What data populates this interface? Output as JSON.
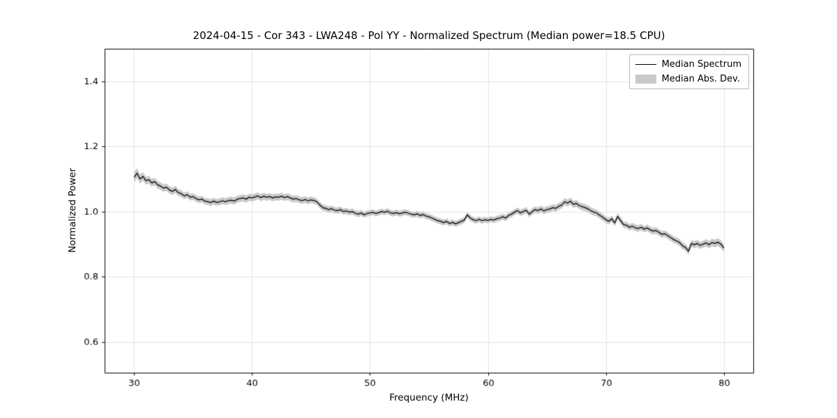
{
  "title": "2024-04-15 - Cor 343 - LWA248 - Pol YY - Normalized Spectrum (Median power=18.5 CPU)",
  "axes": {
    "xlabel": "Frequency (MHz)",
    "ylabel": "Normalized Power"
  },
  "legend": {
    "entries": [
      {
        "label": "Median Spectrum",
        "type": "line"
      },
      {
        "label": "Median Abs. Dev.",
        "type": "patch"
      }
    ],
    "position": "upper right"
  },
  "colors": {
    "line": "#000000",
    "band": "#c9c9c9",
    "grid": "#e4e4e4",
    "frame": "#000000",
    "text": "#000000"
  },
  "chart_data": {
    "type": "line",
    "title": "2024-04-15 - Cor 343 - LWA248 - Pol YY - Normalized Spectrum (Median power=18.5 CPU)",
    "xlabel": "Frequency (MHz)",
    "ylabel": "Normalized Power",
    "xlim": [
      27.5,
      82.5
    ],
    "ylim": [
      0.505,
      1.5
    ],
    "xticks": [
      30,
      40,
      50,
      60,
      70,
      80
    ],
    "yticks": [
      0.6,
      0.8,
      1.0,
      1.2,
      1.4
    ],
    "grid": true,
    "legend_position": "upper right",
    "x_start": 30,
    "x_step": 0.25,
    "series": [
      {
        "name": "Median Spectrum",
        "color": "#000000",
        "values": [
          1.105,
          1.118,
          1.1,
          1.108,
          1.095,
          1.098,
          1.088,
          1.092,
          1.082,
          1.078,
          1.072,
          1.075,
          1.066,
          1.062,
          1.068,
          1.058,
          1.055,
          1.048,
          1.052,
          1.044,
          1.046,
          1.04,
          1.036,
          1.038,
          1.032,
          1.03,
          1.028,
          1.032,
          1.028,
          1.03,
          1.033,
          1.03,
          1.034,
          1.035,
          1.032,
          1.038,
          1.04,
          1.042,
          1.038,
          1.044,
          1.042,
          1.045,
          1.048,
          1.043,
          1.047,
          1.044,
          1.046,
          1.042,
          1.045,
          1.044,
          1.047,
          1.043,
          1.046,
          1.042,
          1.038,
          1.04,
          1.036,
          1.034,
          1.037,
          1.033,
          1.036,
          1.034,
          1.03,
          1.02,
          1.012,
          1.01,
          1.006,
          1.009,
          1.004,
          1.003,
          1.006,
          1.0,
          1.002,
          0.998,
          1.0,
          0.995,
          0.992,
          0.996,
          0.99,
          0.994,
          0.996,
          0.998,
          0.994,
          0.997,
          1.0,
          0.998,
          1.001,
          0.996,
          0.994,
          0.997,
          0.993,
          0.996,
          0.998,
          0.995,
          0.992,
          0.99,
          0.993,
          0.988,
          0.991,
          0.986,
          0.984,
          0.98,
          0.976,
          0.972,
          0.97,
          0.966,
          0.97,
          0.963,
          0.967,
          0.962,
          0.966,
          0.97,
          0.974,
          0.99,
          0.98,
          0.975,
          0.972,
          0.976,
          0.972,
          0.975,
          0.973,
          0.976,
          0.974,
          0.978,
          0.98,
          0.984,
          0.98,
          0.988,
          0.992,
          0.998,
          1.003,
          0.996,
          1.0,
          1.004,
          0.992,
          1.0,
          1.006,
          1.003,
          1.008,
          1.002,
          1.006,
          1.008,
          1.012,
          1.01,
          1.016,
          1.02,
          1.03,
          1.026,
          1.032,
          1.022,
          1.025,
          1.018,
          1.015,
          1.012,
          1.008,
          1.002,
          0.998,
          0.995,
          0.988,
          0.982,
          0.975,
          0.97,
          0.978,
          0.965,
          0.985,
          0.972,
          0.96,
          0.958,
          0.952,
          0.955,
          0.95,
          0.948,
          0.952,
          0.946,
          0.95,
          0.944,
          0.94,
          0.942,
          0.936,
          0.93,
          0.932,
          0.926,
          0.92,
          0.914,
          0.91,
          0.905,
          0.895,
          0.89,
          0.878,
          0.902,
          0.898,
          0.902,
          0.896,
          0.9,
          0.904,
          0.898,
          0.905,
          0.902,
          0.906,
          0.9,
          0.888
        ]
      },
      {
        "name": "Median Abs. Dev.",
        "color": "#c9c9c9",
        "band_halfwidth_points": [
          [
            30,
            0.016
          ],
          [
            31,
            0.012
          ],
          [
            35,
            0.01
          ],
          [
            40,
            0.011
          ],
          [
            45,
            0.01
          ],
          [
            50,
            0.009
          ],
          [
            55,
            0.009
          ],
          [
            60,
            0.009
          ],
          [
            65,
            0.01
          ],
          [
            67,
            0.011
          ],
          [
            70,
            0.01
          ],
          [
            75,
            0.01
          ],
          [
            78,
            0.011
          ],
          [
            80,
            0.012
          ]
        ]
      }
    ]
  }
}
